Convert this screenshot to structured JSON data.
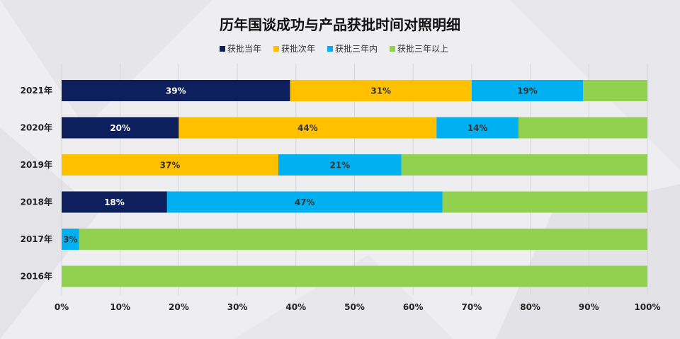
{
  "chart_data": {
    "type": "bar",
    "orientation": "horizontal",
    "stacked": true,
    "title": "历年国谈成功与产品获批时间对照明细",
    "categories": [
      "2021年",
      "2020年",
      "2019年",
      "2018年",
      "2017年",
      "2016年"
    ],
    "series": [
      {
        "name": "获批当年",
        "color": "#0d1f5c",
        "values": [
          39,
          20,
          0,
          18,
          0,
          0
        ]
      },
      {
        "name": "获批次年",
        "color": "#ffc000",
        "values": [
          31,
          44,
          37,
          0,
          0,
          0
        ]
      },
      {
        "name": "获批三年内",
        "color": "#00b0f0",
        "values": [
          19,
          14,
          21,
          47,
          3,
          0
        ]
      },
      {
        "name": "获批三年以上",
        "color": "#92d050",
        "values": [
          11,
          22,
          42,
          35,
          97,
          100
        ]
      }
    ],
    "data_labels": [
      [
        "39%",
        "31%",
        "19%",
        null
      ],
      [
        "20%",
        "44%",
        "14%",
        null
      ],
      [
        null,
        "37%",
        "21%",
        null
      ],
      [
        "18%",
        null,
        "47%",
        null
      ],
      [
        null,
        null,
        "3%",
        null
      ],
      [
        null,
        null,
        null,
        null
      ]
    ],
    "xlim": [
      0,
      100
    ],
    "x_ticks": [
      "0%",
      "10%",
      "20%",
      "30%",
      "40%",
      "50%",
      "60%",
      "70%",
      "80%",
      "90%",
      "100%"
    ],
    "grid": true,
    "legend_position": "top"
  }
}
